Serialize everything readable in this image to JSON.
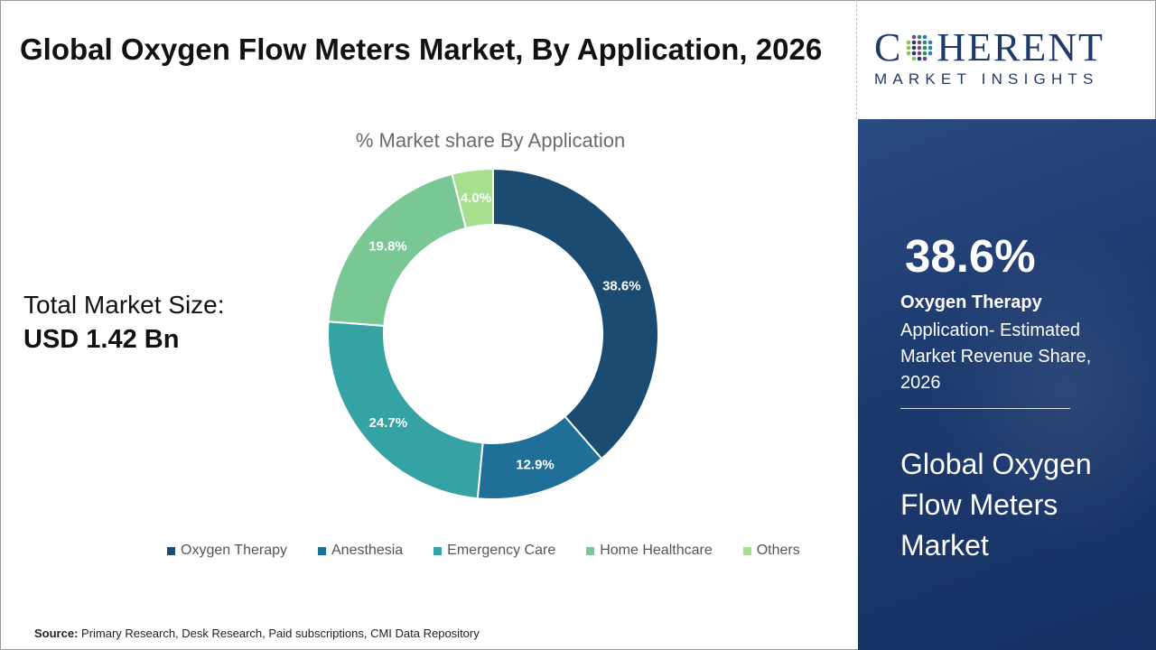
{
  "header": {
    "title": "Global Oxygen Flow Meters Market, By Application, 2026"
  },
  "total_market": {
    "label": "Total Market Size:",
    "value": "USD 1.42 Bn"
  },
  "source": {
    "label": "Source:",
    "text": "Primary Research, Desk Research, Paid subscriptions, CMI Data Repository"
  },
  "logo": {
    "main_prefix": "C",
    "main_suffix": "HERENT",
    "sub": "MARKET INSIGHTS"
  },
  "panel": {
    "highlight_value": "38.6%",
    "highlight_segment": "Oxygen Therapy",
    "highlight_description": "Application- Estimated Market Revenue Share, 2026",
    "market_name": "Global Oxygen Flow Meters Market"
  },
  "chart_data": {
    "type": "pie",
    "title": "% Market share By Application",
    "categories": [
      "Oxygen Therapy",
      "Anesthesia",
      "Emergency Care",
      "Home Healthcare",
      "Others"
    ],
    "values": [
      38.6,
      12.9,
      24.7,
      19.8,
      4.0
    ],
    "labels": [
      "38.6%",
      "12.9%",
      "24.7%",
      "19.8%",
      "4.0%"
    ],
    "colors": [
      "#1c4b72",
      "#1f6f99",
      "#35a3a3",
      "#79c795",
      "#a6df8d"
    ],
    "donut": true,
    "legend_position": "bottom"
  }
}
